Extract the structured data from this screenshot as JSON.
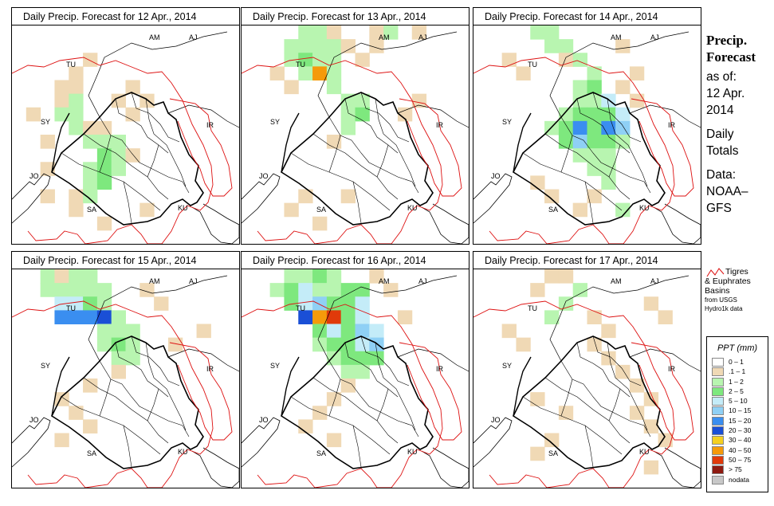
{
  "panels": [
    {
      "title": "Daily Precip. Forecast for  12 Apr., 2014"
    },
    {
      "title": "Daily Precip. Forecast for  13 Apr., 2014"
    },
    {
      "title": "Daily Precip. Forecast for  14 Apr., 2014"
    },
    {
      "title": "Daily Precip. Forecast for  15 Apr., 2014"
    },
    {
      "title": "Daily Precip. Forecast for  16 Apr., 2014"
    },
    {
      "title": "Daily Precip. Forecast for  17 Apr., 2014"
    }
  ],
  "countries": [
    "AM",
    "AJ",
    "TU",
    "SY",
    "IR",
    "JO",
    "SA",
    "KU"
  ],
  "sidebar": {
    "title_line1": "Precip.",
    "title_line2": "Forecast",
    "asof_line1": "as of:",
    "asof_line2": "12 Apr.",
    "asof_line3": "2014",
    "daily_line1": "Daily",
    "daily_line2": "Totals",
    "data_line1": "Data:",
    "data_line2": "NOAA–",
    "data_line3": "GFS"
  },
  "basin_legend": {
    "line1": "Tigres",
    "line2": "& Euphrates",
    "line3": "Basins",
    "line4": "from USGS",
    "line5": "Hydro1k data",
    "basin_color": "#dd1111"
  },
  "ppt_legend": {
    "title": "PPT (mm)",
    "items": [
      {
        "label": "0 – 1",
        "color": "#ffffff"
      },
      {
        "label": ".1 – 1",
        "color": "#f0d9b5"
      },
      {
        "label": "1 – 2",
        "color": "#b8f5b0"
      },
      {
        "label": "2 – 5",
        "color": "#7ee87e"
      },
      {
        "label": "5 – 10",
        "color": "#c4ecf8"
      },
      {
        "label": "10 – 15",
        "color": "#8fd0f5"
      },
      {
        "label": "15 – 20",
        "color": "#3a8ef0"
      },
      {
        "label": "20 – 30",
        "color": "#1a4fd6"
      },
      {
        "label": "30 – 40",
        "color": "#f5d020"
      },
      {
        "label": "40 – 50",
        "color": "#f59a0a"
      },
      {
        "label": "50 – 75",
        "color": "#e03a0a"
      },
      {
        "label": "> 75",
        "color": "#8e1a10"
      },
      {
        "label": "nodata",
        "color": "#c8c8c8"
      }
    ]
  },
  "precip_grid": {
    "rows": 16,
    "cols": 16,
    "panels": [
      {
        "cells": [
          [
            4,
            3,
            1
          ],
          [
            4,
            4,
            1
          ],
          [
            5,
            3,
            1
          ],
          [
            5,
            4,
            2
          ],
          [
            6,
            3,
            2
          ],
          [
            6,
            4,
            2
          ],
          [
            7,
            4,
            2
          ],
          [
            7,
            5,
            1
          ],
          [
            7,
            6,
            1
          ],
          [
            8,
            5,
            2
          ],
          [
            8,
            6,
            2
          ],
          [
            8,
            7,
            2
          ],
          [
            9,
            6,
            3
          ],
          [
            9,
            7,
            2
          ],
          [
            9,
            8,
            1
          ],
          [
            10,
            5,
            2
          ],
          [
            10,
            6,
            3
          ],
          [
            10,
            7,
            2
          ],
          [
            11,
            5,
            2
          ],
          [
            11,
            6,
            3
          ],
          [
            12,
            4,
            1
          ],
          [
            12,
            5,
            2
          ],
          [
            13,
            4,
            1
          ],
          [
            4,
            8,
            1
          ],
          [
            5,
            7,
            1
          ],
          [
            5,
            9,
            1
          ],
          [
            6,
            8,
            1
          ],
          [
            3,
            4,
            1
          ],
          [
            2,
            5,
            1
          ],
          [
            6,
            1,
            1
          ],
          [
            8,
            2,
            1
          ],
          [
            10,
            2,
            1
          ],
          [
            12,
            2,
            1
          ],
          [
            14,
            6,
            1
          ],
          [
            13,
            9,
            1
          ]
        ]
      },
      {
        "cells": [
          [
            0,
            4,
            2
          ],
          [
            0,
            5,
            2
          ],
          [
            0,
            6,
            1
          ],
          [
            1,
            3,
            2
          ],
          [
            1,
            4,
            2
          ],
          [
            1,
            5,
            2
          ],
          [
            1,
            6,
            2
          ],
          [
            1,
            7,
            1
          ],
          [
            2,
            3,
            2
          ],
          [
            2,
            4,
            3
          ],
          [
            2,
            5,
            2
          ],
          [
            2,
            6,
            2
          ],
          [
            3,
            4,
            2
          ],
          [
            3,
            5,
            9
          ],
          [
            3,
            6,
            2
          ],
          [
            4,
            6,
            2
          ],
          [
            5,
            7,
            2
          ],
          [
            5,
            8,
            2
          ],
          [
            6,
            7,
            2
          ],
          [
            6,
            8,
            3
          ],
          [
            7,
            7,
            2
          ],
          [
            8,
            6,
            1
          ],
          [
            0,
            9,
            1
          ],
          [
            0,
            10,
            2
          ],
          [
            1,
            9,
            1
          ],
          [
            2,
            8,
            1
          ],
          [
            3,
            2,
            1
          ],
          [
            4,
            3,
            1
          ],
          [
            5,
            12,
            1
          ],
          [
            6,
            11,
            1
          ],
          [
            12,
            4,
            1
          ],
          [
            13,
            3,
            1
          ],
          [
            14,
            5,
            1
          ],
          [
            12,
            7,
            1
          ],
          [
            0,
            12,
            1
          ]
        ]
      },
      {
        "cells": [
          [
            0,
            4,
            2
          ],
          [
            0,
            5,
            2
          ],
          [
            1,
            5,
            2
          ],
          [
            1,
            6,
            2
          ],
          [
            2,
            6,
            1
          ],
          [
            2,
            7,
            2
          ],
          [
            3,
            8,
            2
          ],
          [
            4,
            7,
            2
          ],
          [
            4,
            8,
            3
          ],
          [
            5,
            7,
            2
          ],
          [
            5,
            8,
            2
          ],
          [
            5,
            9,
            4
          ],
          [
            6,
            6,
            2
          ],
          [
            6,
            7,
            3
          ],
          [
            6,
            8,
            3
          ],
          [
            6,
            9,
            3
          ],
          [
            6,
            10,
            4
          ],
          [
            7,
            5,
            2
          ],
          [
            7,
            6,
            3
          ],
          [
            7,
            7,
            6
          ],
          [
            7,
            8,
            3
          ],
          [
            7,
            9,
            6
          ],
          [
            7,
            10,
            5
          ],
          [
            8,
            6,
            3
          ],
          [
            8,
            7,
            5
          ],
          [
            8,
            8,
            3
          ],
          [
            8,
            9,
            3
          ],
          [
            8,
            10,
            2
          ],
          [
            9,
            7,
            2
          ],
          [
            9,
            8,
            2
          ],
          [
            9,
            9,
            2
          ],
          [
            10,
            8,
            2
          ],
          [
            10,
            9,
            2
          ],
          [
            11,
            9,
            2
          ],
          [
            12,
            8,
            1
          ],
          [
            13,
            7,
            1
          ],
          [
            4,
            10,
            1
          ],
          [
            5,
            11,
            1
          ],
          [
            3,
            11,
            1
          ],
          [
            1,
            10,
            1
          ],
          [
            2,
            2,
            1
          ],
          [
            3,
            3,
            1
          ],
          [
            11,
            4,
            1
          ],
          [
            12,
            5,
            1
          ],
          [
            13,
            10,
            2
          ]
        ]
      },
      {
        "cells": [
          [
            0,
            2,
            2
          ],
          [
            0,
            3,
            1
          ],
          [
            0,
            4,
            2
          ],
          [
            0,
            5,
            2
          ],
          [
            1,
            2,
            2
          ],
          [
            1,
            3,
            2
          ],
          [
            1,
            4,
            2
          ],
          [
            1,
            5,
            2
          ],
          [
            1,
            6,
            2
          ],
          [
            2,
            3,
            4
          ],
          [
            2,
            4,
            4
          ],
          [
            2,
            5,
            3
          ],
          [
            2,
            6,
            2
          ],
          [
            3,
            3,
            6
          ],
          [
            3,
            4,
            6
          ],
          [
            3,
            5,
            6
          ],
          [
            3,
            6,
            7
          ],
          [
            3,
            7,
            2
          ],
          [
            4,
            6,
            2
          ],
          [
            4,
            7,
            2
          ],
          [
            4,
            8,
            2
          ],
          [
            5,
            6,
            2
          ],
          [
            5,
            7,
            3
          ],
          [
            5,
            8,
            2
          ],
          [
            6,
            7,
            2
          ],
          [
            6,
            8,
            2
          ],
          [
            7,
            7,
            1
          ],
          [
            8,
            5,
            1
          ],
          [
            9,
            3,
            1
          ],
          [
            10,
            4,
            1
          ],
          [
            11,
            5,
            1
          ],
          [
            12,
            3,
            1
          ],
          [
            1,
            9,
            1
          ],
          [
            2,
            10,
            1
          ],
          [
            5,
            11,
            1
          ],
          [
            4,
            13,
            1
          ]
        ]
      },
      {
        "cells": [
          [
            0,
            3,
            2
          ],
          [
            0,
            4,
            2
          ],
          [
            0,
            5,
            3
          ],
          [
            0,
            6,
            2
          ],
          [
            1,
            2,
            2
          ],
          [
            1,
            3,
            3
          ],
          [
            1,
            4,
            4
          ],
          [
            1,
            5,
            2
          ],
          [
            1,
            6,
            2
          ],
          [
            1,
            7,
            3
          ],
          [
            1,
            8,
            3
          ],
          [
            2,
            3,
            3
          ],
          [
            2,
            4,
            4
          ],
          [
            2,
            5,
            5
          ],
          [
            2,
            6,
            3
          ],
          [
            2,
            7,
            3
          ],
          [
            2,
            8,
            4
          ],
          [
            3,
            4,
            7
          ],
          [
            3,
            5,
            9
          ],
          [
            3,
            6,
            10
          ],
          [
            3,
            7,
            3
          ],
          [
            3,
            8,
            4
          ],
          [
            4,
            5,
            3
          ],
          [
            4,
            6,
            4
          ],
          [
            4,
            7,
            3
          ],
          [
            4,
            8,
            5
          ],
          [
            4,
            9,
            4
          ],
          [
            5,
            5,
            2
          ],
          [
            5,
            6,
            3
          ],
          [
            5,
            7,
            3
          ],
          [
            5,
            8,
            4
          ],
          [
            5,
            9,
            5
          ],
          [
            6,
            6,
            2
          ],
          [
            6,
            7,
            3
          ],
          [
            6,
            8,
            3
          ],
          [
            6,
            9,
            3
          ],
          [
            7,
            7,
            2
          ],
          [
            7,
            8,
            2
          ],
          [
            8,
            7,
            1
          ],
          [
            9,
            6,
            1
          ],
          [
            10,
            5,
            1
          ],
          [
            11,
            4,
            1
          ],
          [
            0,
            9,
            1
          ],
          [
            1,
            10,
            1
          ],
          [
            3,
            11,
            1
          ],
          [
            12,
            6,
            1
          ]
        ]
      },
      {
        "cells": [
          [
            0,
            5,
            1
          ],
          [
            0,
            6,
            1
          ],
          [
            1,
            4,
            1
          ],
          [
            1,
            7,
            2
          ],
          [
            2,
            6,
            2
          ],
          [
            3,
            5,
            2
          ],
          [
            3,
            8,
            1
          ],
          [
            4,
            9,
            1
          ],
          [
            5,
            8,
            1
          ],
          [
            6,
            9,
            1
          ],
          [
            7,
            10,
            1
          ],
          [
            8,
            11,
            1
          ],
          [
            9,
            12,
            1
          ],
          [
            10,
            11,
            1
          ],
          [
            11,
            12,
            1
          ],
          [
            12,
            13,
            1
          ],
          [
            4,
            2,
            1
          ],
          [
            5,
            3,
            1
          ],
          [
            9,
            4,
            1
          ],
          [
            10,
            6,
            1
          ],
          [
            12,
            5,
            1
          ],
          [
            13,
            4,
            1
          ],
          [
            2,
            12,
            1
          ],
          [
            3,
            13,
            1
          ],
          [
            14,
            12,
            1
          ]
        ]
      }
    ]
  }
}
